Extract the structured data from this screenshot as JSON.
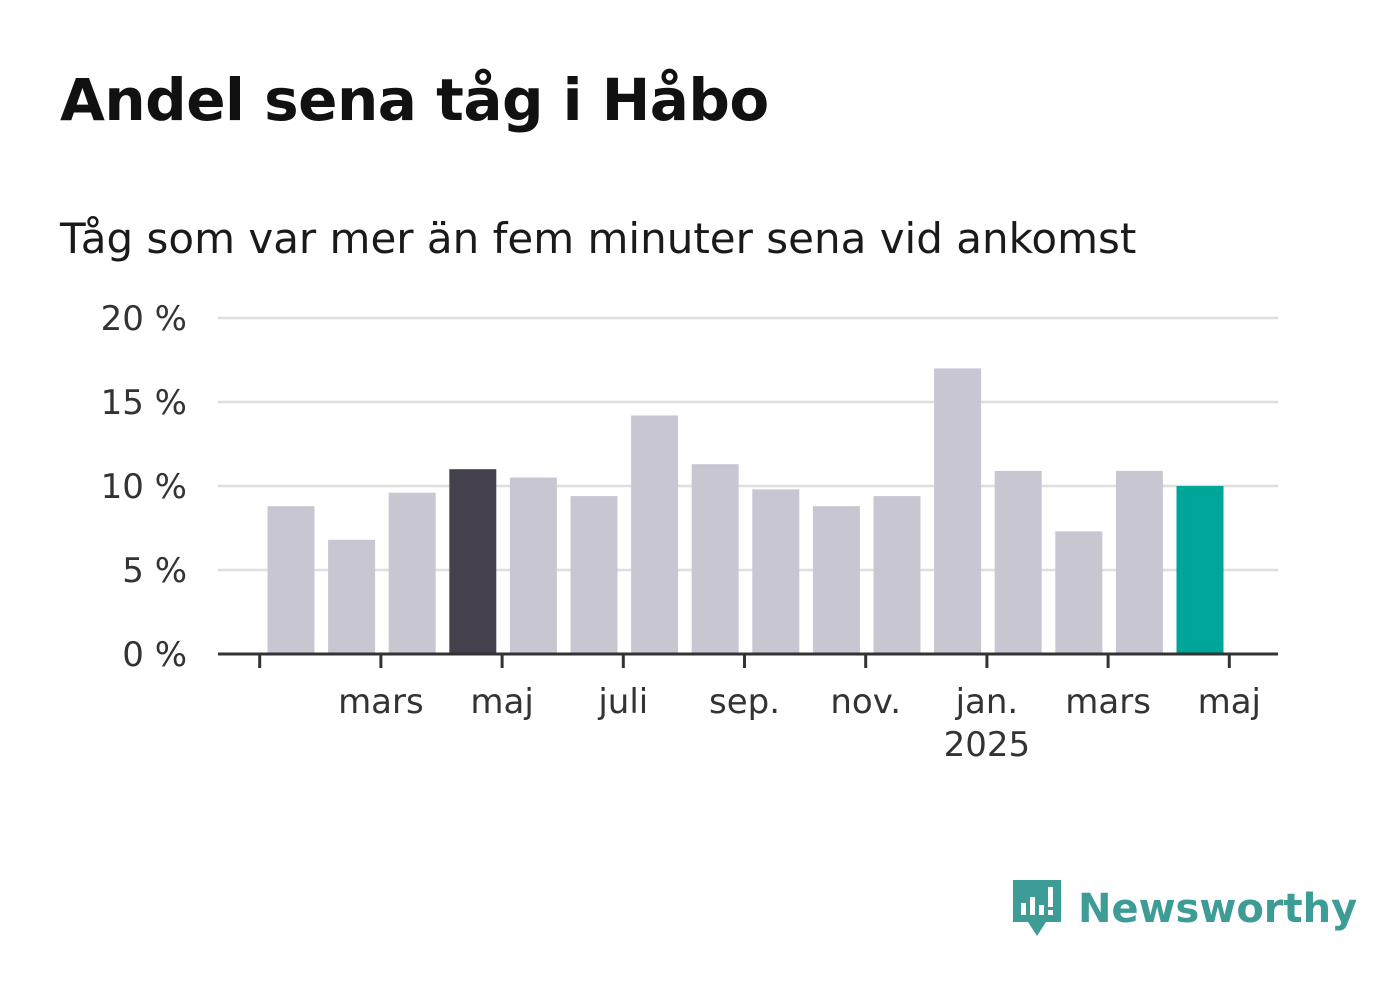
{
  "chart_data": {
    "type": "bar",
    "title": "Andel sena tåg i Håbo",
    "subtitle": "Tåg som var mer än fem minuter sena vid ankomst",
    "ylim": [
      0,
      20
    ],
    "y_ticks": [
      "0 %",
      "5 %",
      "10 %",
      "15 %",
      "20 %"
    ],
    "y_tick_values": [
      0,
      5,
      10,
      15,
      20
    ],
    "x_tick_labels": [
      {
        "bar_index": 0,
        "label": "",
        "sub": ""
      },
      {
        "bar_index": 2,
        "label": "mars",
        "sub": ""
      },
      {
        "bar_index": 4,
        "label": "maj",
        "sub": ""
      },
      {
        "bar_index": 6,
        "label": "juli",
        "sub": ""
      },
      {
        "bar_index": 8,
        "label": "sep.",
        "sub": ""
      },
      {
        "bar_index": 10,
        "label": "nov.",
        "sub": ""
      },
      {
        "bar_index": 12,
        "label": "jan.",
        "sub": "2025"
      },
      {
        "bar_index": 14,
        "label": "mars",
        "sub": ""
      },
      {
        "bar_index": 16,
        "label": "maj",
        "sub": ""
      }
    ],
    "values": [
      8.8,
      6.8,
      9.6,
      11.0,
      10.5,
      9.4,
      14.2,
      11.3,
      9.8,
      8.8,
      9.4,
      17.0,
      10.9,
      7.3,
      10.9,
      10.0
    ],
    "highlight": {
      "3": "dark",
      "15": "accent"
    },
    "grid": true
  },
  "colors": {
    "bar": "#c8c7d1",
    "bar_dark": "#44414d",
    "bar_accent": "#00a59a",
    "grid": "#dedede",
    "axis": "#333333",
    "tick_text": "#333333",
    "brand": "#3e9c96"
  },
  "brand": {
    "name": "Newsworthy",
    "icon": "newsworthy-logo-icon"
  }
}
